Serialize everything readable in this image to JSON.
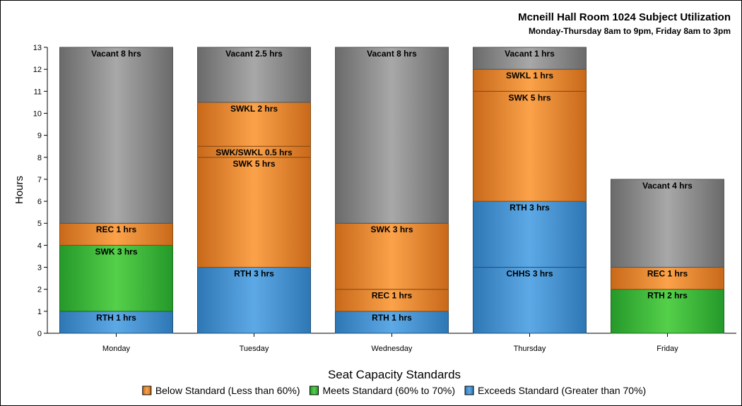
{
  "chart_data": {
    "type": "bar",
    "stacked": true,
    "title": "Mcneill Hall Room 1024 Subject Utilization",
    "subtitle": "Monday-Thursday 8am to 9pm, Friday 8am to 3pm",
    "xlabel": "",
    "ylabel": "Hours",
    "ylim": [
      0,
      13
    ],
    "yticks": [
      0,
      1,
      2,
      3,
      4,
      5,
      6,
      7,
      8,
      9,
      10,
      11,
      12,
      13
    ],
    "categories": [
      "Monday",
      "Tuesday",
      "Wednesday",
      "Thursday",
      "Friday"
    ],
    "stacks": [
      [
        {
          "label": "RTH 1 hrs",
          "value": 1,
          "group": "exceeds"
        },
        {
          "label": "SWK 3 hrs",
          "value": 3,
          "group": "meets"
        },
        {
          "label": "REC 1 hrs",
          "value": 1,
          "group": "below"
        },
        {
          "label": "Vacant 8 hrs",
          "value": 8,
          "group": "vacant"
        }
      ],
      [
        {
          "label": "RTH 3 hrs",
          "value": 3,
          "group": "exceeds"
        },
        {
          "label": "SWK 5 hrs",
          "value": 5,
          "group": "below"
        },
        {
          "label": "SWK/SWKL 0.5 hrs",
          "value": 0.5,
          "group": "below"
        },
        {
          "label": "SWKL 2 hrs",
          "value": 2,
          "group": "below"
        },
        {
          "label": "Vacant 2.5 hrs",
          "value": 2.5,
          "group": "vacant"
        }
      ],
      [
        {
          "label": "RTH 1 hrs",
          "value": 1,
          "group": "exceeds"
        },
        {
          "label": "REC 1 hrs",
          "value": 1,
          "group": "below"
        },
        {
          "label": "SWK 3 hrs",
          "value": 3,
          "group": "below"
        },
        {
          "label": "Vacant 8 hrs",
          "value": 8,
          "group": "vacant"
        }
      ],
      [
        {
          "label": "CHHS 3 hrs",
          "value": 3,
          "group": "exceeds"
        },
        {
          "label": "RTH 3 hrs",
          "value": 3,
          "group": "exceeds"
        },
        {
          "label": "SWK 5 hrs",
          "value": 5,
          "group": "below"
        },
        {
          "label": "SWKL 1 hrs",
          "value": 1,
          "group": "below"
        },
        {
          "label": "Vacant 1 hrs",
          "value": 1,
          "group": "vacant"
        }
      ],
      [
        {
          "label": "RTH 2 hrs",
          "value": 2,
          "group": "meets"
        },
        {
          "label": "REC 1 hrs",
          "value": 1,
          "group": "below"
        },
        {
          "label": "Vacant 4 hrs",
          "value": 4,
          "group": "vacant"
        }
      ]
    ],
    "legend": {
      "title": "Seat Capacity Standards",
      "placement": "bottom",
      "items": [
        {
          "key": "below",
          "label": "Below Standard (Less than 60%)"
        },
        {
          "key": "meets",
          "label": "Meets Standard (60% to 70%)"
        },
        {
          "key": "exceeds",
          "label": "Exceeds Standard (Greater than 70%)"
        }
      ]
    },
    "colors": {
      "below": {
        "edge": "#C8691A",
        "mid": "#FBA24A",
        "stroke": "#8A4A12"
      },
      "meets": {
        "edge": "#25992A",
        "mid": "#55D04A",
        "stroke": "#1C6A1E"
      },
      "exceeds": {
        "edge": "#2E77B5",
        "mid": "#5DA9E6",
        "stroke": "#1F4F7A"
      },
      "vacant": {
        "edge": "#6A6A6A",
        "mid": "#A8A8A8",
        "stroke": "#555555"
      }
    }
  }
}
